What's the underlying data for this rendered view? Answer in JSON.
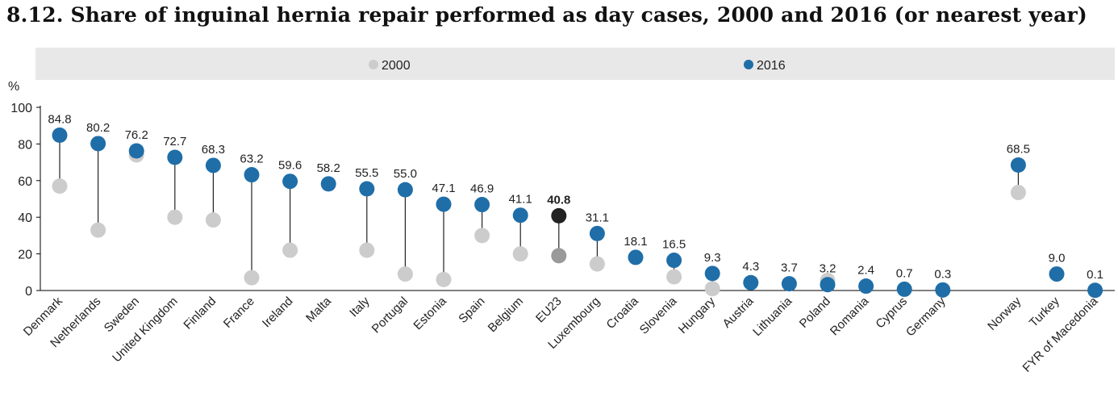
{
  "title": "8.12. Share of inguinal hernia repair performed as day cases, 2000 and 2016 (or nearest year)",
  "chart_data": {
    "type": "dot-range",
    "title": "8.12. Share of inguinal hernia repair performed as day cases, 2000 and 2016 (or nearest year)",
    "ylabel": "%",
    "ylim": [
      0,
      100
    ],
    "yticks": [
      0,
      20,
      40,
      60,
      80,
      100
    ],
    "grid": false,
    "legend_position": "top",
    "series": [
      {
        "name": "2000",
        "color": "#cccccc"
      },
      {
        "name": "2016",
        "color": "#1f6ea8"
      }
    ],
    "highlight_color_2016": "#222222",
    "highlight_color_2000": "#9a9a9a",
    "points": [
      {
        "name": "Denmark",
        "v2000": 57,
        "v2016": 84.8,
        "label": "84.8"
      },
      {
        "name": "Netherlands",
        "v2000": 33,
        "v2016": 80.2,
        "label": "80.2"
      },
      {
        "name": "Sweden",
        "v2000": 74,
        "v2016": 76.2,
        "label": "76.2"
      },
      {
        "name": "United Kingdom",
        "v2000": 40,
        "v2016": 72.7,
        "label": "72.7"
      },
      {
        "name": "Finland",
        "v2000": 38.5,
        "v2016": 68.3,
        "label": "68.3"
      },
      {
        "name": "France",
        "v2000": 7,
        "v2016": 63.2,
        "label": "63.2"
      },
      {
        "name": "Ireland",
        "v2000": 22,
        "v2016": 59.6,
        "label": "59.6"
      },
      {
        "name": "Malta",
        "v2000": null,
        "v2016": 58.2,
        "label": "58.2"
      },
      {
        "name": "Italy",
        "v2000": 22,
        "v2016": 55.5,
        "label": "55.5"
      },
      {
        "name": "Portugal",
        "v2000": 9,
        "v2016": 55.0,
        "label": "55.0"
      },
      {
        "name": "Estonia",
        "v2000": 6,
        "v2016": 47.1,
        "label": "47.1"
      },
      {
        "name": "Spain",
        "v2000": 30,
        "v2016": 46.9,
        "label": "46.9"
      },
      {
        "name": "Belgium",
        "v2000": 20,
        "v2016": 41.1,
        "label": "41.1"
      },
      {
        "name": "EU23",
        "v2000": 19,
        "v2016": 40.8,
        "label": "40.8",
        "highlight": true
      },
      {
        "name": "Luxembourg",
        "v2000": 14.5,
        "v2016": 31.1,
        "label": "31.1"
      },
      {
        "name": "Croatia",
        "v2000": null,
        "v2016": 18.1,
        "label": "18.1"
      },
      {
        "name": "Slovenia",
        "v2000": 7.5,
        "v2016": 16.5,
        "label": "16.5"
      },
      {
        "name": "Hungary",
        "v2000": 1,
        "v2016": 9.3,
        "label": "9.3"
      },
      {
        "name": "Austria",
        "v2000": null,
        "v2016": 4.3,
        "label": "4.3"
      },
      {
        "name": "Lithuania",
        "v2000": null,
        "v2016": 3.7,
        "label": "3.7"
      },
      {
        "name": "Poland",
        "v2000": 5.5,
        "v2016": 3.2,
        "label": "3.2"
      },
      {
        "name": "Romania",
        "v2000": null,
        "v2016": 2.4,
        "label": "2.4"
      },
      {
        "name": "Cyprus",
        "v2000": null,
        "v2016": 0.7,
        "label": "0.7"
      },
      {
        "name": "Germany",
        "v2000": null,
        "v2016": 0.3,
        "label": "0.3"
      },
      {
        "name": "Norway",
        "v2000": 53.5,
        "v2016": 68.5,
        "label": "68.5",
        "group_gap": true
      },
      {
        "name": "Turkey",
        "v2000": null,
        "v2016": 9.0,
        "label": "9.0"
      },
      {
        "name": "FYR of Macedonia",
        "v2000": null,
        "v2016": 0.1,
        "label": "0.1"
      }
    ]
  }
}
